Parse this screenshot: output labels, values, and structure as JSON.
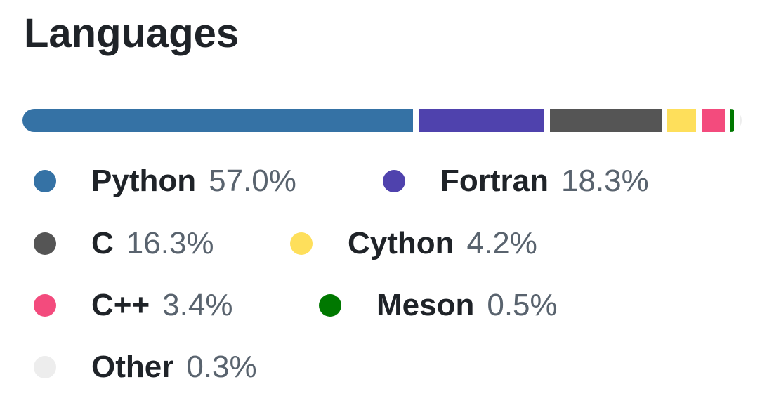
{
  "panel": {
    "title": "Languages"
  },
  "languages": [
    {
      "name": "Python",
      "percent": "57.0%",
      "value": 57.0,
      "color": "#3572A5"
    },
    {
      "name": "Fortran",
      "percent": "18.3%",
      "value": 18.3,
      "color": "#4F42AD"
    },
    {
      "name": "C",
      "percent": "16.3%",
      "value": 16.3,
      "color": "#555555"
    },
    {
      "name": "Cython",
      "percent": "4.2%",
      "value": 4.2,
      "color": "#FEDF5B"
    },
    {
      "name": "C++",
      "percent": "3.4%",
      "value": 3.4,
      "color": "#F34B7D"
    },
    {
      "name": "Meson",
      "percent": "0.5%",
      "value": 0.5,
      "color": "#007800"
    },
    {
      "name": "Other",
      "percent": "0.3%",
      "value": 0.3,
      "color": "#EDEDED"
    }
  ]
}
